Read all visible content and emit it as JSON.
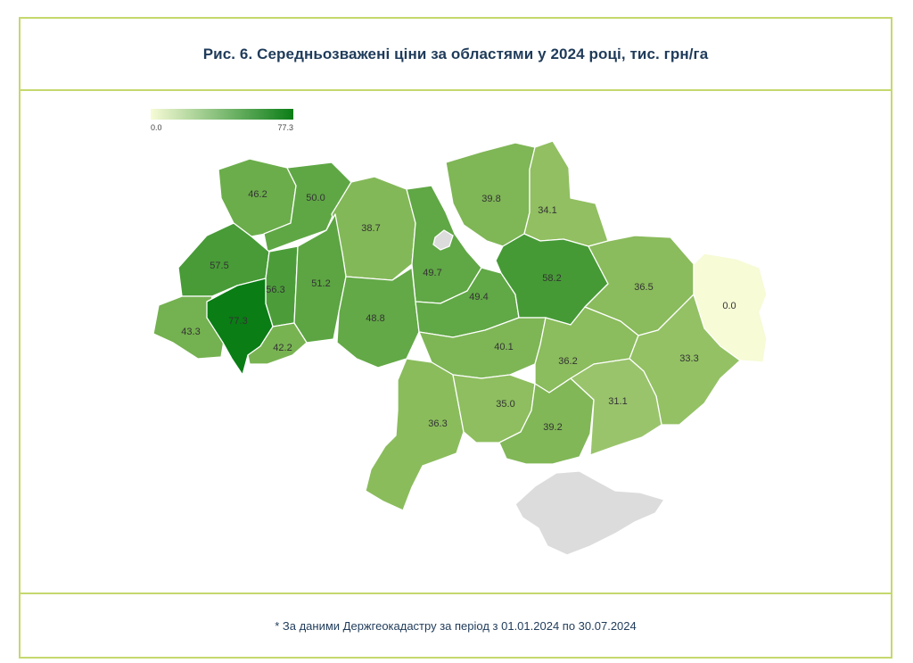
{
  "title": "Рис. 6. Середньозважені ціни за областями у 2024 році, тис. грн/га",
  "footnote": "* За даними Держгеокадастру за період з 01.01.2024 по 30.07.2024",
  "legend": {
    "min_label": "0.0",
    "max_label": "77.3",
    "min": 0.0,
    "max": 77.3,
    "color_low": "#f7fbd6",
    "color_high": "#0a7d15"
  },
  "colors": {
    "frame": "#c5d86d",
    "title": "#1f3b5a",
    "no_data": "#dcdcdc"
  },
  "regions": [
    {
      "id": "volyn",
      "label": "46.2",
      "value": 46.2
    },
    {
      "id": "rivne",
      "label": "50.0",
      "value": 50.0
    },
    {
      "id": "zhytomyr",
      "label": "38.7",
      "value": 38.7
    },
    {
      "id": "kyiv",
      "label": "49.7",
      "value": 49.7
    },
    {
      "id": "chernihiv",
      "label": "39.8",
      "value": 39.8
    },
    {
      "id": "sumy",
      "label": "34.1",
      "value": 34.1
    },
    {
      "id": "lviv",
      "label": "57.5",
      "value": 57.5
    },
    {
      "id": "ternopil",
      "label": "56.3",
      "value": 56.3
    },
    {
      "id": "khmelnytskyi",
      "label": "51.2",
      "value": 51.2
    },
    {
      "id": "vinnytsia",
      "label": "48.8",
      "value": 48.8
    },
    {
      "id": "cherkasy",
      "label": "49.4",
      "value": 49.4
    },
    {
      "id": "poltava",
      "label": "58.2",
      "value": 58.2
    },
    {
      "id": "kharkiv",
      "label": "36.5",
      "value": 36.5
    },
    {
      "id": "luhansk",
      "label": "0.0",
      "value": 0.0
    },
    {
      "id": "zakarpattia",
      "label": "43.3",
      "value": 43.3
    },
    {
      "id": "ivano-frankivsk",
      "label": "77.3",
      "value": 77.3
    },
    {
      "id": "chernivtsi",
      "label": "42.2",
      "value": 42.2
    },
    {
      "id": "kirovohrad",
      "label": "40.1",
      "value": 40.1
    },
    {
      "id": "dnipropetrovsk",
      "label": "36.2",
      "value": 36.2
    },
    {
      "id": "donetsk",
      "label": "33.3",
      "value": 33.3
    },
    {
      "id": "odesa",
      "label": "36.3",
      "value": 36.3
    },
    {
      "id": "mykolaiv",
      "label": "35.0",
      "value": 35.0
    },
    {
      "id": "kherson",
      "label": "39.2",
      "value": 39.2
    },
    {
      "id": "zaporizhzhia",
      "label": "31.1",
      "value": 31.1
    }
  ]
}
